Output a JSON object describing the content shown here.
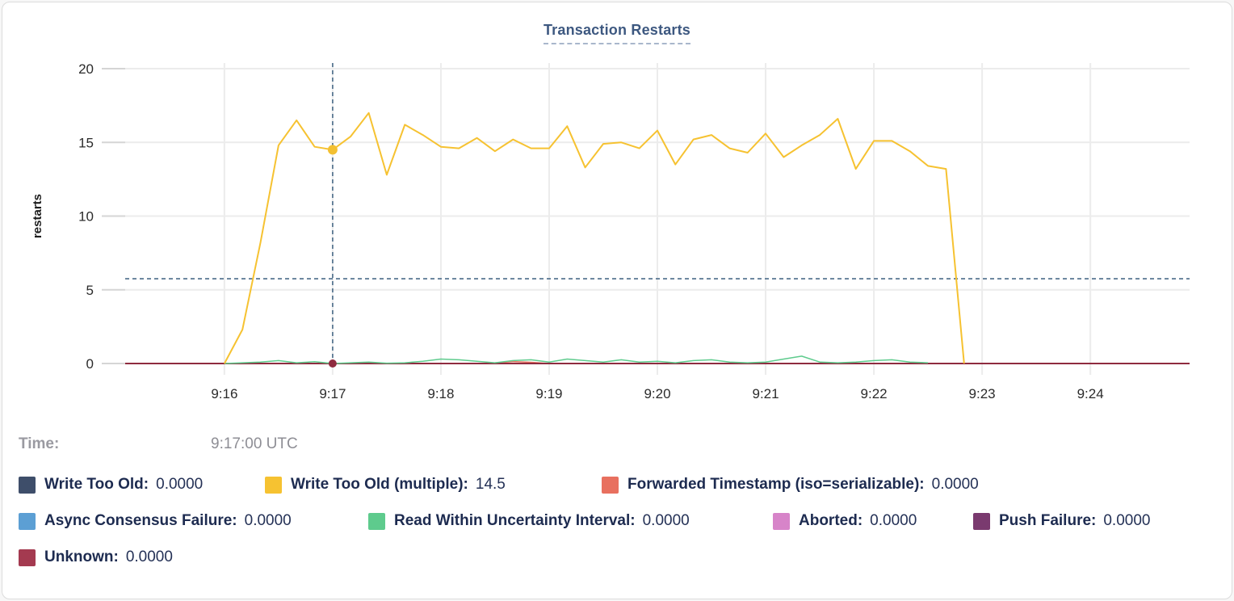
{
  "time_row": {
    "label": "Time:",
    "value": "9:17:00 UTC"
  },
  "chart_data": {
    "type": "line",
    "title": "Transaction Restarts",
    "xlabel": "",
    "ylabel": "restarts",
    "ylim": [
      0,
      20
    ],
    "yticks": [
      0,
      5,
      10,
      15,
      20
    ],
    "grid": true,
    "legend_position": "bottom",
    "x_domain_seconds_after_9am": [
      905,
      1495
    ],
    "xticks": [
      {
        "t": 960,
        "label": "9:16"
      },
      {
        "t": 1020,
        "label": "9:17"
      },
      {
        "t": 1080,
        "label": "9:18"
      },
      {
        "t": 1140,
        "label": "9:19"
      },
      {
        "t": 1200,
        "label": "9:20"
      },
      {
        "t": 1260,
        "label": "9:21"
      },
      {
        "t": 1320,
        "label": "9:22"
      },
      {
        "t": 1380,
        "label": "9:23"
      },
      {
        "t": 1440,
        "label": "9:24"
      }
    ],
    "crosshair": {
      "t": 1020,
      "h_value": 5.75
    },
    "hover_markers": [
      {
        "t": 1020,
        "value": 14.5,
        "color": "#F3C032",
        "r": 6
      },
      {
        "t": 1020,
        "value": 0,
        "color": "#8F2B3F",
        "r": 5
      }
    ],
    "draw_order": [
      0,
      3,
      5,
      6,
      2,
      7,
      4,
      1
    ],
    "legend_rows": [
      [
        0,
        1,
        2
      ],
      [
        3,
        4,
        5,
        6
      ],
      [
        7
      ]
    ],
    "series": [
      {
        "name": "Write Too Old",
        "color": "#3E4E6A",
        "width": 1.5,
        "hover_value": "0.0000",
        "points": [
          [
            960,
            0
          ],
          [
            1370,
            0
          ]
        ]
      },
      {
        "name": "Write Too Old (multiple)",
        "color": "#F6C231",
        "width": 2,
        "hover_value": "14.5",
        "points": [
          [
            960,
            0
          ],
          [
            970,
            2.3
          ],
          [
            980,
            8.2
          ],
          [
            990,
            14.8
          ],
          [
            1000,
            16.5
          ],
          [
            1010,
            14.7
          ],
          [
            1020,
            14.5
          ],
          [
            1030,
            15.4
          ],
          [
            1040,
            17.0
          ],
          [
            1050,
            12.8
          ],
          [
            1060,
            16.2
          ],
          [
            1070,
            15.5
          ],
          [
            1080,
            14.7
          ],
          [
            1090,
            14.6
          ],
          [
            1100,
            15.3
          ],
          [
            1110,
            14.4
          ],
          [
            1120,
            15.2
          ],
          [
            1130,
            14.6
          ],
          [
            1140,
            14.6
          ],
          [
            1150,
            16.1
          ],
          [
            1160,
            13.3
          ],
          [
            1170,
            14.9
          ],
          [
            1180,
            15.0
          ],
          [
            1190,
            14.6
          ],
          [
            1200,
            15.8
          ],
          [
            1210,
            13.5
          ],
          [
            1220,
            15.2
          ],
          [
            1230,
            15.5
          ],
          [
            1240,
            14.6
          ],
          [
            1250,
            14.3
          ],
          [
            1260,
            15.6
          ],
          [
            1270,
            14.0
          ],
          [
            1280,
            14.8
          ],
          [
            1290,
            15.5
          ],
          [
            1300,
            16.6
          ],
          [
            1310,
            13.2
          ],
          [
            1320,
            15.1
          ],
          [
            1330,
            15.1
          ],
          [
            1340,
            14.4
          ],
          [
            1350,
            13.4
          ],
          [
            1360,
            13.2
          ],
          [
            1370,
            0
          ]
        ]
      },
      {
        "name": "Forwarded Timestamp (iso=serializable)",
        "color": "#E8705F",
        "width": 1.5,
        "hover_value": "0.0000",
        "points": [
          [
            960,
            0
          ],
          [
            1100,
            0
          ],
          [
            1110,
            0.05
          ],
          [
            1120,
            0.13
          ],
          [
            1130,
            0.08
          ],
          [
            1140,
            0
          ],
          [
            1370,
            0
          ]
        ]
      },
      {
        "name": "Async Consensus Failure",
        "color": "#5C9FD4",
        "width": 1.5,
        "hover_value": "0.0000",
        "points": [
          [
            960,
            0
          ],
          [
            1370,
            0
          ]
        ]
      },
      {
        "name": "Read Within Uncertainty Interval",
        "color": "#5ECB8D",
        "width": 1.5,
        "hover_value": "0.0000",
        "points": [
          [
            960,
            0
          ],
          [
            970,
            0.05
          ],
          [
            980,
            0.1
          ],
          [
            990,
            0.2
          ],
          [
            1000,
            0.05
          ],
          [
            1010,
            0.12
          ],
          [
            1020,
            0
          ],
          [
            1030,
            0.05
          ],
          [
            1040,
            0.1
          ],
          [
            1050,
            0.02
          ],
          [
            1060,
            0.05
          ],
          [
            1070,
            0.15
          ],
          [
            1080,
            0.3
          ],
          [
            1090,
            0.25
          ],
          [
            1100,
            0.15
          ],
          [
            1110,
            0.05
          ],
          [
            1120,
            0.2
          ],
          [
            1130,
            0.25
          ],
          [
            1140,
            0.1
          ],
          [
            1150,
            0.3
          ],
          [
            1160,
            0.2
          ],
          [
            1170,
            0.1
          ],
          [
            1180,
            0.25
          ],
          [
            1190,
            0.1
          ],
          [
            1200,
            0.15
          ],
          [
            1210,
            0.05
          ],
          [
            1220,
            0.2
          ],
          [
            1230,
            0.25
          ],
          [
            1240,
            0.1
          ],
          [
            1250,
            0.05
          ],
          [
            1260,
            0.1
          ],
          [
            1270,
            0.3
          ],
          [
            1280,
            0.5
          ],
          [
            1290,
            0.1
          ],
          [
            1300,
            0.05
          ],
          [
            1310,
            0.1
          ],
          [
            1320,
            0.2
          ],
          [
            1330,
            0.25
          ],
          [
            1340,
            0.1
          ],
          [
            1350,
            0.05
          ]
        ]
      },
      {
        "name": "Aborted",
        "color": "#D784C9",
        "width": 1.5,
        "hover_value": "0.0000",
        "points": [
          [
            960,
            0
          ],
          [
            1370,
            0
          ]
        ]
      },
      {
        "name": "Push Failure",
        "color": "#7A3A6F",
        "width": 1.5,
        "hover_value": "0.0000",
        "points": [
          [
            960,
            0
          ],
          [
            1370,
            0
          ]
        ]
      },
      {
        "name": "Unknown",
        "color": "#8F2B3F",
        "swatch_color": "#A43A50",
        "width": 2,
        "hover_value": "0.0000",
        "points": [
          [
            905,
            0
          ],
          [
            1495,
            0
          ]
        ]
      }
    ],
    "style": {
      "grid_color": "#ececec",
      "outer_tick_color": "#d5d5d5",
      "crosshair_color": "#4a6b89",
      "tick_text_color": "#2b2b2b",
      "ylabel_color": "#1c1c1c"
    }
  }
}
